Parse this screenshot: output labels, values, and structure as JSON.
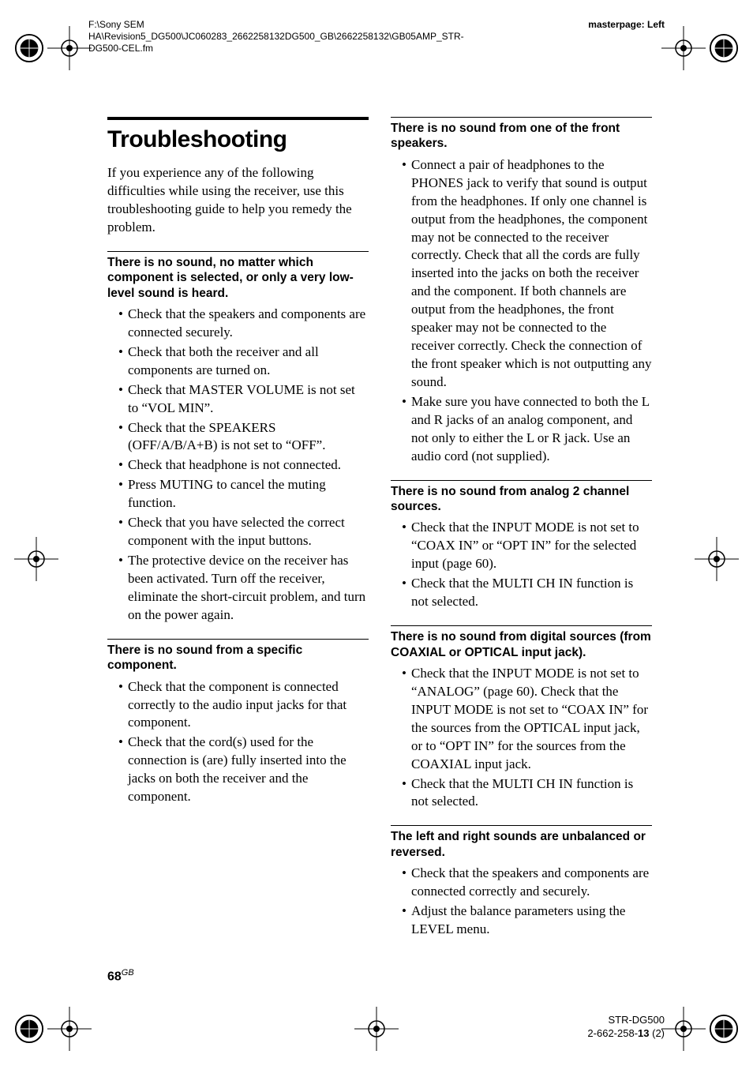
{
  "header": {
    "path": "F:\\Sony SEM HA\\Revision5_DG500\\JC060283_2662258132DG500_GB\\2662258132\\GB05AMP_STR-DG500-CEL.fm",
    "masterpage": "masterpage: Left"
  },
  "footer": {
    "model": "STR-DG500",
    "code": "2-662-258-13 (2)"
  },
  "page": {
    "number": "68",
    "suffix": "GB"
  },
  "col1": {
    "title": "Troubleshooting",
    "intro": "If you experience any of the following difficulties while using the receiver, use this troubleshooting guide to help you remedy the problem.",
    "sections": [
      {
        "heading": "There is no sound, no matter which component is selected, or only a very low-level sound is heard.",
        "items": [
          "Check that the speakers and components are connected securely.",
          "Check that both the receiver and all components are turned on.",
          "Check that MASTER VOLUME is not set to “VOL MIN”.",
          "Check that the SPEAKERS (OFF/A/B/A+B) is not set to “OFF”.",
          "Check that headphone is not connected.",
          "Press MUTING to cancel the muting function.",
          "Check that you have selected the correct component with the input buttons.",
          "The protective device on the receiver has been activated. Turn off the receiver, eliminate the short-circuit problem, and turn on the power again."
        ]
      },
      {
        "heading": "There is no sound from a specific component.",
        "items": [
          "Check that the component is connected correctly to the audio input jacks for that component.",
          "Check that the cord(s) used for the connection is (are) fully inserted into the jacks on both the receiver and the component."
        ]
      }
    ]
  },
  "col2": {
    "sections": [
      {
        "heading": "There is no sound from one of the front speakers.",
        "items": [
          "Connect a pair of headphones to the PHONES jack to verify that sound is output from the headphones. If only one channel is output from the headphones, the component may not be connected to the receiver correctly. Check that all the cords are fully inserted into the jacks on both the receiver and the component. If both channels are output from the headphones, the front speaker may not be connected to the receiver correctly. Check the connection of the front speaker which is not outputting any sound.",
          "Make sure you have connected to both the L and R jacks of an analog component, and not only to either the L or R jack. Use an audio cord (not supplied)."
        ]
      },
      {
        "heading": "There is no sound from analog 2 channel sources.",
        "items": [
          "Check that the INPUT MODE is not set to “COAX IN” or “OPT IN” for the selected input (page 60).",
          "Check that the MULTI CH IN function is not selected."
        ]
      },
      {
        "heading": "There is no sound from digital sources (from COAXIAL or OPTICAL input jack).",
        "items": [
          "Check that the INPUT MODE is not set to “ANALOG” (page 60). Check that the INPUT MODE is not set to “COAX IN” for the sources from the OPTICAL input jack, or to “OPT IN” for the sources from the COAXIAL input jack.",
          "Check that the MULTI CH IN function is not selected."
        ]
      },
      {
        "heading": "The left and right sounds are unbalanced or reversed.",
        "items": [
          "Check that the speakers and components are connected correctly and securely.",
          "Adjust the balance parameters using the LEVEL menu."
        ]
      }
    ]
  }
}
